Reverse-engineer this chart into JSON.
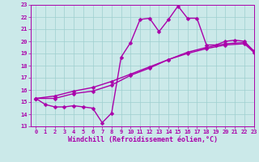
{
  "xlabel": "Windchill (Refroidissement éolien,°C)",
  "xlim": [
    -0.5,
    23
  ],
  "ylim": [
    13,
    23
  ],
  "xticks": [
    0,
    1,
    2,
    3,
    4,
    5,
    6,
    7,
    8,
    9,
    10,
    11,
    12,
    13,
    14,
    15,
    16,
    17,
    18,
    19,
    20,
    21,
    22,
    23
  ],
  "yticks": [
    13,
    14,
    15,
    16,
    17,
    18,
    19,
    20,
    21,
    22,
    23
  ],
  "bg_color": "#cbe9e9",
  "grid_color": "#9ecfcf",
  "line_color": "#aa00aa",
  "line1_x": [
    0,
    1,
    2,
    3,
    4,
    5,
    6,
    7,
    8,
    9,
    10,
    11,
    12,
    13,
    14,
    15,
    16,
    17,
    18,
    19,
    20,
    21,
    22,
    23
  ],
  "line1_y": [
    15.3,
    14.8,
    14.6,
    14.6,
    14.7,
    14.6,
    14.5,
    13.3,
    14.1,
    18.7,
    19.9,
    21.8,
    21.9,
    20.8,
    21.8,
    22.9,
    21.9,
    21.9,
    19.7,
    19.7,
    20.0,
    20.1,
    20.0,
    19.2
  ],
  "line2_x": [
    0,
    2,
    4,
    6,
    8,
    10,
    12,
    14,
    16,
    18,
    20,
    22,
    23
  ],
  "line2_y": [
    15.3,
    15.3,
    15.7,
    15.9,
    16.4,
    17.2,
    17.8,
    18.5,
    19.1,
    19.5,
    19.8,
    19.9,
    19.2
  ],
  "line3_x": [
    0,
    2,
    4,
    6,
    8,
    10,
    12,
    14,
    16,
    18,
    20,
    22,
    23
  ],
  "line3_y": [
    15.3,
    15.5,
    15.9,
    16.2,
    16.7,
    17.3,
    17.9,
    18.5,
    19.0,
    19.4,
    19.7,
    19.8,
    19.1
  ],
  "marker": "D",
  "markersize": 2.5,
  "linewidth": 1.0,
  "tick_fontsize": 5.0,
  "xlabel_fontsize": 6.0
}
